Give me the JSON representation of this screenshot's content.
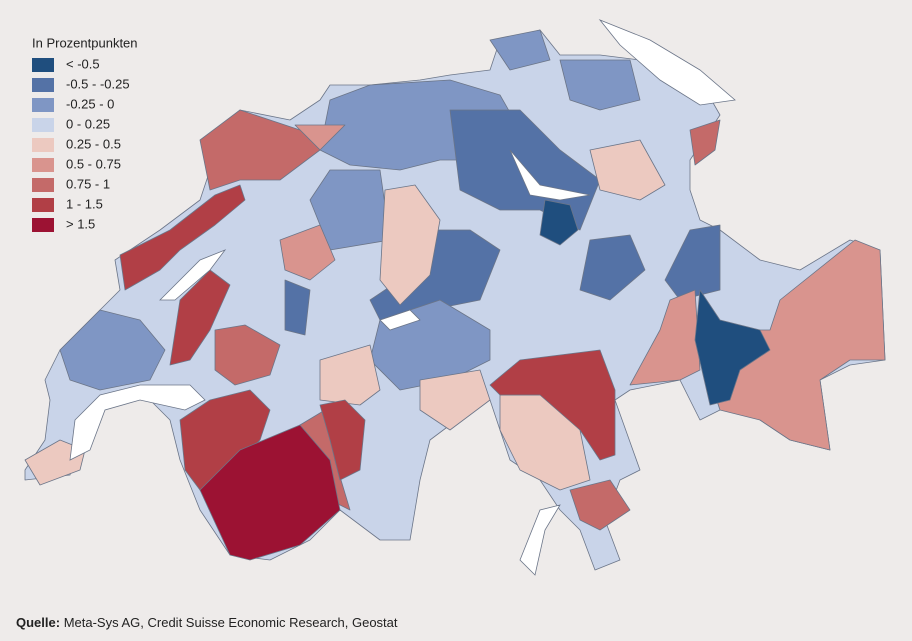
{
  "legend": {
    "title": "In Prozentpunkten",
    "items": [
      {
        "label": "< -0.5",
        "color": "#1f4e7e"
      },
      {
        "label": "-0.5 - -0.25",
        "color": "#5472a6"
      },
      {
        "label": "-0.25 - 0",
        "color": "#7f96c4"
      },
      {
        "label": "0 - 0.25",
        "color": "#c9d4e9"
      },
      {
        "label": "0.25 - 0.5",
        "color": "#ecc9c0"
      },
      {
        "label": "0.5 - 0.75",
        "color": "#d9948e"
      },
      {
        "label": "0.75 - 1",
        "color": "#c46a69"
      },
      {
        "label": "1 - 1.5",
        "color": "#b13f46"
      },
      {
        "label": "> 1.5",
        "color": "#9c1233"
      }
    ]
  },
  "source": {
    "label": "Quelle:",
    "text": "Meta-Sys AG, Credit Suisse Economic Research, Geostat"
  }
}
